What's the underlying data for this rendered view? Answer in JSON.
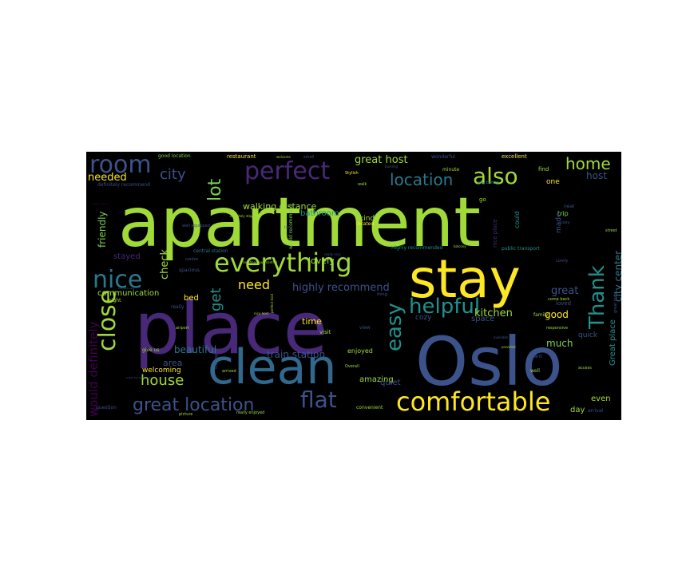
{
  "wordcloud": {
    "background": "#000000",
    "palette": [
      "#440154",
      "#3b528b",
      "#21918c",
      "#5ec962",
      "#fde725",
      "#a0da39",
      "#31688e",
      "#482878",
      "#2a788e",
      "#7ad151"
    ],
    "words": [
      {
        "text": "apartment",
        "color": "#a0da39"
      },
      {
        "text": "place",
        "color": "#482878"
      },
      {
        "text": "Oslo",
        "color": "#3b528b"
      },
      {
        "text": "stay",
        "color": "#fde725"
      },
      {
        "text": "clean",
        "color": "#31688e"
      },
      {
        "text": "everything",
        "color": "#a0da39"
      },
      {
        "text": "comfortable",
        "color": "#fde725"
      },
      {
        "text": "helpful",
        "color": "#21918c"
      },
      {
        "text": "nice",
        "color": "#2a788e"
      },
      {
        "text": "also",
        "color": "#a0da39"
      },
      {
        "text": "room",
        "color": "#3b528b"
      },
      {
        "text": "perfect",
        "color": "#482878"
      },
      {
        "text": "close",
        "color": "#a0da39"
      },
      {
        "text": "easy",
        "color": "#21918c"
      },
      {
        "text": "flat",
        "color": "#3b528b"
      },
      {
        "text": "Thank",
        "color": "#21918c"
      },
      {
        "text": "great location",
        "color": "#3b528b"
      },
      {
        "text": "house",
        "color": "#a0da39"
      },
      {
        "text": "location",
        "color": "#2a788e"
      },
      {
        "text": "home",
        "color": "#a0da39"
      },
      {
        "text": "city",
        "color": "#3b528b"
      },
      {
        "text": "lot",
        "color": "#7ad151"
      },
      {
        "text": "get",
        "color": "#21918c"
      },
      {
        "text": "need",
        "color": "#fde725"
      },
      {
        "text": "great host",
        "color": "#a0da39"
      },
      {
        "text": "highly recommend",
        "color": "#3b528b"
      },
      {
        "text": "would definitely",
        "color": "#440154"
      },
      {
        "text": "needed",
        "color": "#fde725"
      },
      {
        "text": "check",
        "color": "#a0da39"
      },
      {
        "text": "friendly",
        "color": "#7ad151"
      },
      {
        "text": "stayed",
        "color": "#482878"
      },
      {
        "text": "communication",
        "color": "#a0da39"
      },
      {
        "text": "beautiful",
        "color": "#2a788e"
      },
      {
        "text": "train station",
        "color": "#3b528b"
      },
      {
        "text": "great",
        "color": "#3b528b"
      },
      {
        "text": "kitchen",
        "color": "#a0da39"
      },
      {
        "text": "good",
        "color": "#fde725"
      },
      {
        "text": "much",
        "color": "#7ad151"
      },
      {
        "text": "walking distance",
        "color": "#a0da39"
      },
      {
        "text": "host",
        "color": "#3b528b"
      },
      {
        "text": "city center",
        "color": "#2a788e"
      },
      {
        "text": "Great place",
        "color": "#21918c"
      },
      {
        "text": "space",
        "color": "#3b528b"
      },
      {
        "text": "area",
        "color": "#3b528b"
      },
      {
        "text": "lovely",
        "color": "#a0da39"
      },
      {
        "text": "time",
        "color": "#fde725"
      },
      {
        "text": "bed",
        "color": "#fde725"
      },
      {
        "text": "amazing",
        "color": "#a0da39"
      },
      {
        "text": "quiet",
        "color": "#3b528b"
      },
      {
        "text": "cozy",
        "color": "#3b528b"
      },
      {
        "text": "even",
        "color": "#a0da39"
      },
      {
        "text": "day",
        "color": "#a0da39"
      },
      {
        "text": "quick",
        "color": "#3b528b"
      },
      {
        "text": "bathroom",
        "color": "#21918c"
      },
      {
        "text": "kind",
        "color": "#a0da39"
      },
      {
        "text": "welcoming",
        "color": "#fde725"
      },
      {
        "text": "enjoyed",
        "color": "#a0da39"
      },
      {
        "text": "restaurant",
        "color": "#fde725"
      },
      {
        "text": "good location",
        "color": "#7ad151"
      },
      {
        "text": "excellent",
        "color": "#fde725"
      },
      {
        "text": "wonderful",
        "color": "#3b528b"
      },
      {
        "text": "definitely recommend",
        "color": "#3b528b"
      },
      {
        "text": "minute",
        "color": "#a0da39"
      },
      {
        "text": "one",
        "color": "#fde725"
      },
      {
        "text": "find",
        "color": "#a0da39"
      },
      {
        "text": "trip",
        "color": "#7ad151"
      },
      {
        "text": "near",
        "color": "#3b528b"
      },
      {
        "text": "made",
        "color": "#3b528b"
      },
      {
        "text": "could",
        "color": "#21918c"
      },
      {
        "text": "nice place",
        "color": "#482878"
      },
      {
        "text": "public transport",
        "color": "#21918c"
      },
      {
        "text": "loved",
        "color": "#3b528b"
      },
      {
        "text": "family",
        "color": "#a0da39"
      },
      {
        "text": "view",
        "color": "#3b528b"
      },
      {
        "text": "visit",
        "color": "#a0da39"
      },
      {
        "text": "spacious",
        "color": "#3b528b"
      },
      {
        "text": "central station",
        "color": "#2a788e"
      },
      {
        "text": "would recommend",
        "color": "#7ad151"
      },
      {
        "text": "Highly recommended",
        "color": "#21918c"
      },
      {
        "text": "located",
        "color": "#fde725"
      },
      {
        "text": "small",
        "color": "#3b528b"
      },
      {
        "text": "walk",
        "color": "#a0da39"
      },
      {
        "text": "centre",
        "color": "#3b528b"
      },
      {
        "text": "well equipped",
        "color": "#3b528b"
      },
      {
        "text": "Stylish",
        "color": "#fde725"
      },
      {
        "text": "building",
        "color": "#3b528b"
      },
      {
        "text": "city centre",
        "color": "#21918c"
      },
      {
        "text": "go",
        "color": "#a0da39"
      },
      {
        "text": "want",
        "color": "#3b528b"
      },
      {
        "text": "well",
        "color": "#a0da39"
      },
      {
        "text": "arrival",
        "color": "#3b528b"
      },
      {
        "text": "convenient",
        "color": "#a0da39"
      },
      {
        "text": "question",
        "color": "#3b528b"
      },
      {
        "text": "picture",
        "color": "#a0da39"
      },
      {
        "text": "really enjoyed",
        "color": "#a0da39"
      },
      {
        "text": "Overall",
        "color": "#a0da39"
      },
      {
        "text": "arrived",
        "color": "#a0da39"
      },
      {
        "text": "staying",
        "color": "#3b528b"
      },
      {
        "text": "give us",
        "color": "#a0da39"
      },
      {
        "text": "night",
        "color": "#a0da39"
      },
      {
        "text": "really",
        "color": "#3b528b"
      },
      {
        "text": "airport",
        "color": "#a0da39"
      },
      {
        "text": "perfect host",
        "color": "#a0da39"
      },
      {
        "text": "nice host",
        "color": "#a0da39"
      },
      {
        "text": "thing",
        "color": "#3b528b"
      },
      {
        "text": "come back",
        "color": "#a0da39"
      },
      {
        "text": "responsive",
        "color": "#a0da39"
      },
      {
        "text": "available",
        "color": "#3b528b"
      },
      {
        "text": "provided",
        "color": "#a0da39"
      },
      {
        "text": "neighborhood central",
        "color": "#a0da39"
      },
      {
        "text": "really nice",
        "color": "#3b528b"
      },
      {
        "text": "take",
        "color": "#3b528b"
      },
      {
        "text": "welcome",
        "color": "#a0da39"
      },
      {
        "text": "balcony",
        "color": "#a0da39"
      },
      {
        "text": "cosy",
        "color": "#3b528b"
      },
      {
        "text": "access",
        "color": "#a0da39"
      },
      {
        "text": "street",
        "color": "#a0da39"
      },
      {
        "text": "public transportation",
        "color": "#3b528b"
      },
      {
        "text": "bus stop park",
        "color": "#3b528b"
      },
      {
        "text": "definitely stay",
        "color": "#a0da39"
      },
      {
        "text": "comfy",
        "color": "#3b528b"
      },
      {
        "text": "great stay",
        "color": "#3b528b"
      },
      {
        "text": "location great",
        "color": "#440154"
      }
    ]
  }
}
